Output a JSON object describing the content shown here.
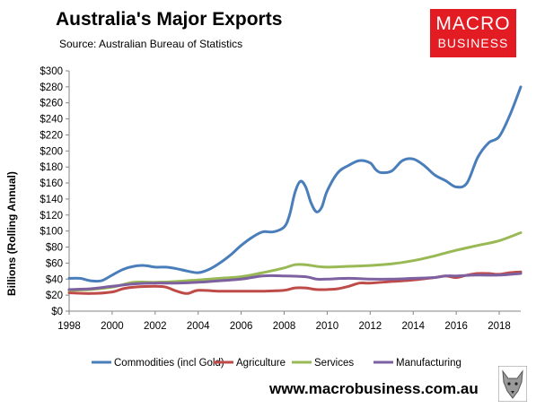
{
  "title": "Australia's Major Exports",
  "subtitle": "Source:  Australian Bureau of Statistics",
  "logo": {
    "line1": "MACRO",
    "line2": "BUSINESS",
    "color": "#e31b23"
  },
  "website": "www.macrobusiness.com.au",
  "chart_data": {
    "type": "line",
    "ylabel": "Billions (Rolling Annual)",
    "ylim": [
      0,
      300
    ],
    "xlim": [
      1998,
      2019
    ],
    "yticks": [
      "$0",
      "$20",
      "$40",
      "$60",
      "$80",
      "$100",
      "$120",
      "$140",
      "$160",
      "$180",
      "$200",
      "$220",
      "$240",
      "$260",
      "$280",
      "$300"
    ],
    "xticks": [
      "1998",
      "2000",
      "2002",
      "2004",
      "2006",
      "2008",
      "2010",
      "2012",
      "2014",
      "2016",
      "2018"
    ],
    "grid": false,
    "legend": "bottom",
    "series": [
      {
        "name": "Commodities (incl Gold)",
        "color": "#4a7ebb",
        "points": [
          [
            1998,
            41
          ],
          [
            1998.5,
            41
          ],
          [
            1999,
            38
          ],
          [
            1999.5,
            38
          ],
          [
            2000,
            45
          ],
          [
            2000.5,
            52
          ],
          [
            2001,
            56
          ],
          [
            2001.5,
            57
          ],
          [
            2002,
            55
          ],
          [
            2002.5,
            55
          ],
          [
            2003,
            53
          ],
          [
            2003.5,
            50
          ],
          [
            2004,
            48
          ],
          [
            2004.5,
            52
          ],
          [
            2005,
            60
          ],
          [
            2005.5,
            70
          ],
          [
            2006,
            82
          ],
          [
            2006.5,
            92
          ],
          [
            2007,
            99
          ],
          [
            2007.5,
            99
          ],
          [
            2008,
            105
          ],
          [
            2008.25,
            120
          ],
          [
            2008.5,
            148
          ],
          [
            2008.75,
            162
          ],
          [
            2009,
            155
          ],
          [
            2009.25,
            135
          ],
          [
            2009.5,
            124
          ],
          [
            2009.75,
            130
          ],
          [
            2010,
            150
          ],
          [
            2010.5,
            173
          ],
          [
            2011,
            182
          ],
          [
            2011.5,
            188
          ],
          [
            2012,
            185
          ],
          [
            2012.25,
            177
          ],
          [
            2012.5,
            173
          ],
          [
            2013,
            175
          ],
          [
            2013.5,
            188
          ],
          [
            2014,
            190
          ],
          [
            2014.5,
            182
          ],
          [
            2015,
            170
          ],
          [
            2015.5,
            163
          ],
          [
            2016,
            155
          ],
          [
            2016.5,
            160
          ],
          [
            2017,
            192
          ],
          [
            2017.5,
            210
          ],
          [
            2018,
            218
          ],
          [
            2018.5,
            245
          ],
          [
            2019,
            280
          ]
        ]
      },
      {
        "name": "Agriculture",
        "color": "#be4b48",
        "points": [
          [
            1998,
            23
          ],
          [
            1999,
            22
          ],
          [
            2000,
            24
          ],
          [
            2000.5,
            28
          ],
          [
            2001,
            30
          ],
          [
            2002,
            31
          ],
          [
            2002.5,
            30
          ],
          [
            2003,
            25
          ],
          [
            2003.5,
            22
          ],
          [
            2004,
            26
          ],
          [
            2005,
            25
          ],
          [
            2006,
            25
          ],
          [
            2007,
            25
          ],
          [
            2008,
            26
          ],
          [
            2008.5,
            29
          ],
          [
            2009,
            29
          ],
          [
            2009.5,
            27
          ],
          [
            2010,
            27
          ],
          [
            2010.5,
            28
          ],
          [
            2011,
            31
          ],
          [
            2011.5,
            35
          ],
          [
            2012,
            35
          ],
          [
            2013,
            37
          ],
          [
            2014,
            39
          ],
          [
            2015,
            42
          ],
          [
            2015.5,
            44
          ],
          [
            2016,
            42
          ],
          [
            2016.5,
            45
          ],
          [
            2017,
            47
          ],
          [
            2017.5,
            47
          ],
          [
            2018,
            46
          ],
          [
            2018.5,
            48
          ],
          [
            2019,
            49
          ]
        ]
      },
      {
        "name": "Services",
        "color": "#98b954",
        "points": [
          [
            1998,
            26
          ],
          [
            1999,
            27
          ],
          [
            2000,
            30
          ],
          [
            2001,
            36
          ],
          [
            2002,
            36
          ],
          [
            2003,
            37
          ],
          [
            2004,
            39
          ],
          [
            2005,
            41
          ],
          [
            2006,
            43
          ],
          [
            2007,
            48
          ],
          [
            2008,
            54
          ],
          [
            2008.5,
            58
          ],
          [
            2009,
            58
          ],
          [
            2009.5,
            56
          ],
          [
            2010,
            55
          ],
          [
            2011,
            56
          ],
          [
            2012,
            57
          ],
          [
            2013,
            59
          ],
          [
            2014,
            63
          ],
          [
            2015,
            69
          ],
          [
            2016,
            76
          ],
          [
            2017,
            82
          ],
          [
            2018,
            88
          ],
          [
            2019,
            98
          ]
        ]
      },
      {
        "name": "Manufacturing",
        "color": "#7d60a0",
        "points": [
          [
            1998,
            27
          ],
          [
            1999,
            28
          ],
          [
            2000,
            31
          ],
          [
            2001,
            34
          ],
          [
            2002,
            35
          ],
          [
            2003,
            35
          ],
          [
            2004,
            36
          ],
          [
            2005,
            38
          ],
          [
            2006,
            40
          ],
          [
            2007,
            44
          ],
          [
            2008,
            44
          ],
          [
            2009,
            43
          ],
          [
            2009.5,
            40
          ],
          [
            2010,
            40
          ],
          [
            2011,
            41
          ],
          [
            2012,
            40
          ],
          [
            2013,
            40
          ],
          [
            2014,
            41
          ],
          [
            2015,
            42
          ],
          [
            2015.5,
            44
          ],
          [
            2016,
            44
          ],
          [
            2017,
            45
          ],
          [
            2018,
            45
          ],
          [
            2019,
            47
          ]
        ]
      }
    ]
  }
}
